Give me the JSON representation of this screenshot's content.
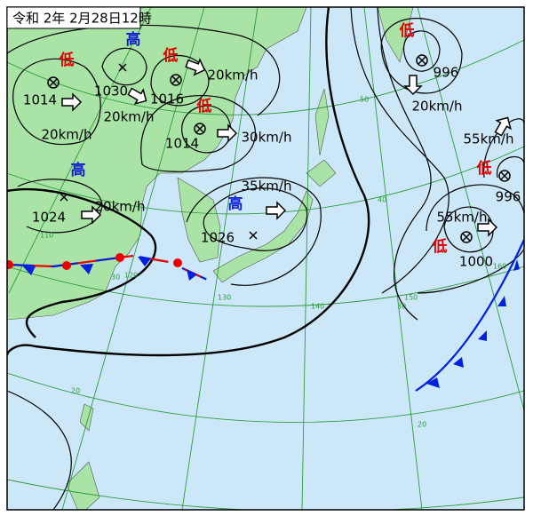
{
  "title": "令和 2年 2月28日12時",
  "systems": [
    {
      "kind": "低",
      "pressure": "1014",
      "speed": "20km/h"
    },
    {
      "kind": "高",
      "pressure": "1030",
      "speed": "20km/h"
    },
    {
      "kind": "低",
      "pressure": "1016",
      "speed": "20km/h"
    },
    {
      "kind": "低",
      "pressure": "1014",
      "speed": "30km/h"
    },
    {
      "kind": "高",
      "pressure": "1024",
      "speed": "20km/h"
    },
    {
      "kind": "高",
      "pressure": "1026",
      "speed": "35km/h"
    },
    {
      "kind": "低",
      "pressure": "996",
      "speed": "20km/h"
    },
    {
      "kind": "低",
      "pressure": "996",
      "speed": "55km/h"
    },
    {
      "kind": "低",
      "pressure": "1000",
      "speed": "55km/h"
    }
  ],
  "grid_labels": [
    "50",
    "40",
    "30",
    "20",
    "20",
    "110",
    "120",
    "130",
    "140",
    "150",
    "160",
    "30"
  ]
}
